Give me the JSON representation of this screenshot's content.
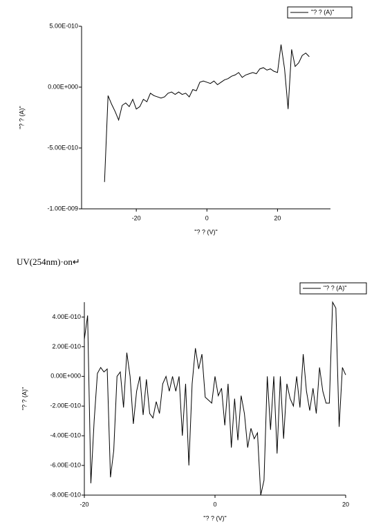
{
  "chart_data": [
    {
      "type": "line",
      "xlabel": "\"?  ?  (V)\"",
      "ylabel": "\"?  ?  (A)\"",
      "legend": "upper right",
      "x": [
        -29,
        -28,
        -27,
        -26,
        -25,
        -24,
        -23,
        -22,
        -21,
        -20,
        -19,
        -18,
        -17,
        -16,
        -15,
        -14,
        -13,
        -12,
        -11,
        -10,
        -9,
        -8,
        -7,
        -6,
        -5,
        -4,
        -3,
        -2,
        -1,
        0,
        1,
        2,
        3,
        4,
        5,
        6,
        7,
        8,
        9,
        10,
        11,
        12,
        13,
        14,
        15,
        16,
        17,
        18,
        19,
        20,
        21,
        22,
        23,
        24,
        25,
        26,
        27,
        28,
        29
      ],
      "series": [
        {
          "name": "\"?  ?  (A)\"",
          "color": "#000000",
          "values": [
            -7.8e-10,
            -7e-11,
            -1.4e-10,
            -2e-10,
            -2.7e-10,
            -1.5e-10,
            -1.3e-10,
            -1.6e-10,
            -1e-10,
            -1.8e-10,
            -1.6e-10,
            -1e-10,
            -1.2e-10,
            -5e-11,
            -7e-11,
            -8e-11,
            -9e-11,
            -8e-11,
            -5e-11,
            -4e-11,
            -6e-11,
            -4e-11,
            -6e-11,
            -5e-11,
            -8e-11,
            -2e-11,
            -3e-11,
            4e-11,
            5e-11,
            4e-11,
            3e-11,
            5e-11,
            2e-11,
            4e-11,
            6e-11,
            7e-11,
            9e-11,
            1e-10,
            1.2e-10,
            8e-11,
            1e-10,
            1.1e-10,
            1.2e-10,
            1.1e-10,
            1.5e-10,
            1.6e-10,
            1.4e-10,
            1.5e-10,
            1.3e-10,
            1.2e-10,
            3.5e-10,
            1.5e-10,
            -1.8e-10,
            3.1e-10,
            1.7e-10,
            2e-10,
            2.6e-10,
            2.8e-10,
            2.5e-10
          ]
        }
      ],
      "xlim": [
        -35.5,
        35
      ],
      "ylim": [
        -1e-09,
        5e-10
      ],
      "xticks": [
        -20,
        0,
        20
      ],
      "yticks": [
        {
          "value": 5e-10,
          "label": "5.00E-010"
        },
        {
          "value": 0,
          "label": "0.00E+000"
        },
        {
          "value": -5e-10,
          "label": "-5.00E-010"
        },
        {
          "value": -1e-09,
          "label": "-1.00E-009"
        }
      ]
    },
    {
      "type": "line",
      "xlabel": "\"?  ?  (V)\"",
      "ylabel": "\"?  ?  (A)\"",
      "legend": "upper right",
      "x": [
        -20,
        -19.5,
        -19,
        -18.5,
        -18,
        -17.5,
        -17,
        -16.5,
        -16,
        -15.5,
        -15,
        -14.5,
        -14,
        -13.5,
        -13,
        -12.5,
        -12,
        -11.5,
        -11,
        -10.5,
        -10,
        -9.5,
        -9,
        -8.5,
        -8,
        -7.5,
        -7,
        -6.5,
        -6,
        -5.5,
        -5,
        -4.5,
        -4,
        -3.5,
        -3,
        -2.5,
        -2,
        -1.5,
        -1,
        -0.5,
        0,
        0.5,
        1,
        1.5,
        2,
        2.5,
        3,
        3.5,
        4,
        4.5,
        5,
        5.5,
        6,
        6.5,
        7,
        7.5,
        8,
        8.5,
        9,
        9.5,
        10,
        10.5,
        11,
        11.5,
        12,
        12.5,
        13,
        13.5,
        14,
        14.5,
        15,
        15.5,
        16,
        16.5,
        17,
        17.5,
        18,
        18.5,
        19,
        19.5,
        20
      ],
      "series": [
        {
          "name": "\"?  ?  (A)\"",
          "color": "#000000",
          "values": [
            2.5e-10,
            4.1e-10,
            -7.2e-10,
            -3e-10,
            2e-11,
            6e-11,
            3e-11,
            5e-11,
            -6.8e-10,
            -5e-10,
            0,
            3e-11,
            -2.1e-10,
            1.6e-10,
            0,
            -3.2e-10,
            -1e-10,
            0,
            -2.6e-10,
            -2e-11,
            -2.5e-10,
            -2.8e-10,
            -1.7e-10,
            -2.5e-10,
            -5e-11,
            0,
            -1e-10,
            0,
            -1e-10,
            0,
            -4e-10,
            -5e-11,
            -6e-10,
            -5e-11,
            1.9e-10,
            5e-11,
            1.5e-10,
            -1.4e-10,
            -1.6e-10,
            -1.8e-10,
            0,
            -1.3e-10,
            -8e-11,
            -3.3e-10,
            -5e-11,
            -4.8e-10,
            -1.5e-10,
            -4.3e-10,
            -1.3e-10,
            -2.5e-10,
            -4.8e-10,
            -3.5e-10,
            -4.2e-10,
            -3.8e-10,
            -8e-10,
            -7e-10,
            0,
            -3.6e-10,
            0,
            -5.2e-10,
            0,
            -4.2e-10,
            -5e-11,
            -1.5e-10,
            -2e-10,
            0,
            -2.1e-10,
            1.5e-10,
            -1e-10,
            -2.3e-10,
            -8e-11,
            -2.5e-10,
            6e-11,
            -1e-10,
            -1.8e-10,
            -1.8e-10,
            5e-10,
            4.6e-10,
            -3.4e-10,
            6e-11,
            1e-11
          ]
        }
      ],
      "xlim": [
        -20,
        20
      ],
      "ylim": [
        -8e-10,
        5e-10
      ],
      "xticks": [
        -20,
        0,
        20
      ],
      "yticks": [
        {
          "value": 4e-10,
          "label": "4.00E-010"
        },
        {
          "value": 2e-10,
          "label": "2.00E-010"
        },
        {
          "value": 0,
          "label": "0.00E+000"
        },
        {
          "value": -2e-10,
          "label": "-2.00E-010"
        },
        {
          "value": -4e-10,
          "label": "-4.00E-010"
        },
        {
          "value": -6e-10,
          "label": "-6.00E-010"
        },
        {
          "value": -8e-10,
          "label": "-8.00E-010"
        }
      ]
    }
  ],
  "caption": "UV(254nm)·on↵"
}
